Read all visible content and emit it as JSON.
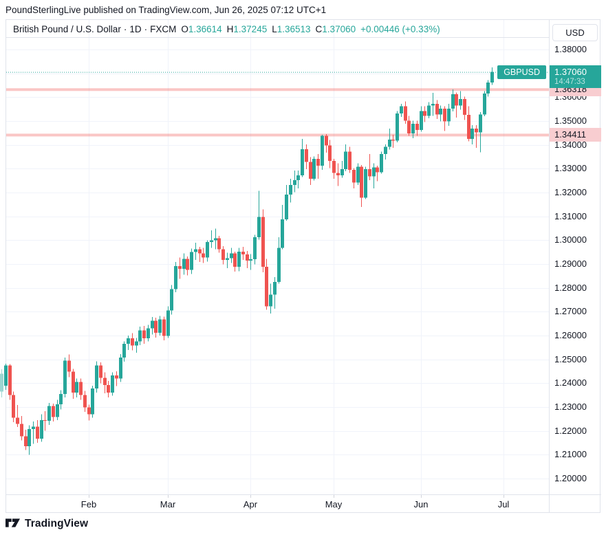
{
  "page": {
    "title": "PoundSterlingLive published on TradingView.com, Jun 26, 2025 07:12 UTC+1",
    "brand": "TradingView"
  },
  "toolbar": {
    "symbol_title": "British Pound / U.S. Dollar",
    "separator": "·",
    "interval": "1D",
    "exchange": "FXCM",
    "ohlc": [
      {
        "k": "O",
        "v": "1.36614"
      },
      {
        "k": "H",
        "v": "1.37245"
      },
      {
        "k": "L",
        "v": "1.36513"
      },
      {
        "k": "C",
        "v": "1.37060"
      }
    ],
    "change": "+0.00446 (+0.33%)"
  },
  "price_axis": {
    "currency_button": "USD",
    "ticks": [
      "1.38000",
      "1.37000",
      "1.36000",
      "1.35000",
      "1.34000",
      "1.33000",
      "1.32000",
      "1.31000",
      "1.30000",
      "1.29000",
      "1.28000",
      "1.27000",
      "1.26000",
      "1.25000",
      "1.24000",
      "1.23000",
      "1.22000",
      "1.21000",
      "1.20000"
    ],
    "levels": [
      {
        "price": "1.36318"
      },
      {
        "price": "1.34411"
      }
    ],
    "last_price": {
      "symbol": "GBPUSD",
      "price": "1.37060",
      "countdown": "14:47:33"
    }
  },
  "time_axis": {
    "labels": [
      {
        "text": "Feb",
        "bar_index": 22
      },
      {
        "text": "Mar",
        "bar_index": 42
      },
      {
        "text": "Apr",
        "bar_index": 63
      },
      {
        "text": "May",
        "bar_index": 84
      },
      {
        "text": "Jun",
        "bar_index": 106
      },
      {
        "text": "Jul",
        "bar_index": 127
      }
    ]
  },
  "colors": {
    "up": "#26a69a",
    "down": "#ef5350",
    "grid": "#f0f3fa",
    "border": "#e0e3eb",
    "text": "#131722",
    "level_band": "rgba(239,83,80,0.33)",
    "level_label_bg": "#f8cdd0"
  },
  "chart_data": {
    "type": "candlestick",
    "title": "British Pound / U.S. Dollar",
    "symbol": "GBPUSD",
    "interval": "1D",
    "exchange": "FXCM",
    "y_axis": {
      "min": 1.2,
      "max": 1.38,
      "tick_step": 0.01,
      "grid": true
    },
    "levels": [
      1.36318,
      1.34411
    ],
    "last_price": 1.3706,
    "candle_fields": [
      "date",
      "open",
      "high",
      "low",
      "close"
    ],
    "candles": [
      [
        "2025-01-02",
        1.2365,
        1.2458,
        1.234,
        1.244
      ],
      [
        "2025-01-03",
        1.239,
        1.2482,
        1.2372,
        1.2474
      ],
      [
        "2025-01-06",
        1.2474,
        1.248,
        1.233,
        1.235
      ],
      [
        "2025-01-07",
        1.235,
        1.2365,
        1.2236,
        1.2256
      ],
      [
        "2025-01-08",
        1.2256,
        1.2308,
        1.2216,
        1.223
      ],
      [
        "2025-01-09",
        1.223,
        1.2262,
        1.216,
        1.2178
      ],
      [
        "2025-01-10",
        1.2178,
        1.2205,
        1.212,
        1.2135
      ],
      [
        "2025-01-13",
        1.2135,
        1.2223,
        1.21,
        1.2208
      ],
      [
        "2025-01-14",
        1.2208,
        1.224,
        1.2145,
        1.2218
      ],
      [
        "2025-01-15",
        1.2218,
        1.2245,
        1.215,
        1.2168
      ],
      [
        "2025-01-16",
        1.2168,
        1.227,
        1.2155,
        1.2245
      ],
      [
        "2025-01-17",
        1.2245,
        1.2282,
        1.22,
        1.2242
      ],
      [
        "2025-01-20",
        1.2242,
        1.2318,
        1.2225,
        1.2305
      ],
      [
        "2025-01-21",
        1.2305,
        1.2315,
        1.224,
        1.2258
      ],
      [
        "2025-01-22",
        1.2258,
        1.233,
        1.2245,
        1.2312
      ],
      [
        "2025-01-23",
        1.2312,
        1.237,
        1.229,
        1.2355
      ],
      [
        "2025-01-24",
        1.2355,
        1.2508,
        1.234,
        1.2495
      ],
      [
        "2025-01-27",
        1.2495,
        1.252,
        1.2425,
        1.2448
      ],
      [
        "2025-01-28",
        1.2448,
        1.246,
        1.2335,
        1.236
      ],
      [
        "2025-01-29",
        1.236,
        1.242,
        1.234,
        1.2405
      ],
      [
        "2025-01-30",
        1.2405,
        1.242,
        1.233,
        1.235
      ],
      [
        "2025-01-31",
        1.235,
        1.2368,
        1.228,
        1.2298
      ],
      [
        "2025-02-03",
        1.2298,
        1.231,
        1.2244,
        1.227
      ],
      [
        "2025-02-04",
        1.227,
        1.239,
        1.2255,
        1.2378
      ],
      [
        "2025-02-05",
        1.2378,
        1.2492,
        1.236,
        1.2475
      ],
      [
        "2025-02-06",
        1.2475,
        1.2488,
        1.24,
        1.2422
      ],
      [
        "2025-02-07",
        1.2422,
        1.2445,
        1.2358,
        1.2392
      ],
      [
        "2025-02-10",
        1.2392,
        1.241,
        1.234,
        1.236
      ],
      [
        "2025-02-11",
        1.236,
        1.2445,
        1.2348,
        1.2432
      ],
      [
        "2025-02-12",
        1.2432,
        1.245,
        1.2388,
        1.242
      ],
      [
        "2025-02-13",
        1.242,
        1.2522,
        1.2405,
        1.2508
      ],
      [
        "2025-02-14",
        1.2508,
        1.2576,
        1.249,
        1.2565
      ],
      [
        "2025-02-17",
        1.2565,
        1.26,
        1.254,
        1.2588
      ],
      [
        "2025-02-18",
        1.2588,
        1.261,
        1.2538,
        1.2558
      ],
      [
        "2025-02-19",
        1.2558,
        1.259,
        1.2528,
        1.2575
      ],
      [
        "2025-02-20",
        1.2575,
        1.2638,
        1.256,
        1.2622
      ],
      [
        "2025-02-21",
        1.2622,
        1.264,
        1.2565,
        1.2588
      ],
      [
        "2025-02-24",
        1.2588,
        1.2645,
        1.2575,
        1.263
      ],
      [
        "2025-02-25",
        1.263,
        1.2678,
        1.2605,
        1.2662
      ],
      [
        "2025-02-26",
        1.2662,
        1.2675,
        1.2592,
        1.2612
      ],
      [
        "2025-02-27",
        1.2612,
        1.2682,
        1.26,
        1.2668
      ],
      [
        "2025-02-28",
        1.2668,
        1.268,
        1.258,
        1.2598
      ],
      [
        "2025-03-03",
        1.2598,
        1.2722,
        1.259,
        1.2705
      ],
      [
        "2025-03-04",
        1.2705,
        1.2812,
        1.2688,
        1.2795
      ],
      [
        "2025-03-05",
        1.2795,
        1.2908,
        1.2782,
        1.2892
      ],
      [
        "2025-03-06",
        1.2892,
        1.2928,
        1.2838,
        1.288
      ],
      [
        "2025-03-07",
        1.288,
        1.2945,
        1.2855,
        1.2922
      ],
      [
        "2025-03-10",
        1.2922,
        1.2932,
        1.2852,
        1.2875
      ],
      [
        "2025-03-11",
        1.2875,
        1.2965,
        1.2858,
        1.295
      ],
      [
        "2025-03-12",
        1.295,
        1.299,
        1.2918,
        1.2962
      ],
      [
        "2025-03-13",
        1.2962,
        1.2972,
        1.2908,
        1.2945
      ],
      [
        "2025-03-14",
        1.2945,
        1.2968,
        1.2905,
        1.2928
      ],
      [
        "2025-03-17",
        1.2928,
        1.3,
        1.291,
        1.2992
      ],
      [
        "2025-03-18",
        1.2992,
        1.3042,
        1.2968,
        1.3
      ],
      [
        "2025-03-19",
        1.3,
        1.3048,
        1.2962,
        1.3008
      ],
      [
        "2025-03-20",
        1.3008,
        1.3018,
        1.2948,
        1.2962
      ],
      [
        "2025-03-21",
        1.2962,
        1.2975,
        1.2898,
        1.2918
      ],
      [
        "2025-03-24",
        1.2918,
        1.2948,
        1.2883,
        1.2925
      ],
      [
        "2025-03-25",
        1.2925,
        1.2968,
        1.2905,
        1.2945
      ],
      [
        "2025-03-26",
        1.2945,
        1.2952,
        1.2868,
        1.2888
      ],
      [
        "2025-03-27",
        1.2888,
        1.2968,
        1.287,
        1.2952
      ],
      [
        "2025-03-28",
        1.2952,
        1.2972,
        1.2918,
        1.294
      ],
      [
        "2025-03-31",
        1.294,
        1.2955,
        1.2882,
        1.2915
      ],
      [
        "2025-04-01",
        1.2915,
        1.2942,
        1.2875,
        1.292
      ],
      [
        "2025-04-02",
        1.292,
        1.3022,
        1.2898,
        1.3012
      ],
      [
        "2025-04-03",
        1.3012,
        1.3207,
        1.3002,
        1.3098
      ],
      [
        "2025-04-04",
        1.3098,
        1.313,
        1.2865,
        1.2888
      ],
      [
        "2025-04-07",
        1.2888,
        1.2922,
        1.2708,
        1.2722
      ],
      [
        "2025-04-08",
        1.2722,
        1.2818,
        1.2692,
        1.2772
      ],
      [
        "2025-04-09",
        1.2772,
        1.2845,
        1.2712,
        1.2825
      ],
      [
        "2025-04-10",
        1.2825,
        1.3012,
        1.2818,
        1.2968
      ],
      [
        "2025-04-11",
        1.2968,
        1.3148,
        1.2962,
        1.3088
      ],
      [
        "2025-04-14",
        1.3088,
        1.3232,
        1.3082,
        1.3192
      ],
      [
        "2025-04-15",
        1.3192,
        1.3258,
        1.3158,
        1.3232
      ],
      [
        "2025-04-16",
        1.3232,
        1.3292,
        1.3202,
        1.3252
      ],
      [
        "2025-04-17",
        1.3252,
        1.3292,
        1.3218,
        1.3272
      ],
      [
        "2025-04-21",
        1.3272,
        1.3425,
        1.3265,
        1.3382
      ],
      [
        "2025-04-22",
        1.3382,
        1.3402,
        1.3298,
        1.3328
      ],
      [
        "2025-04-23",
        1.3328,
        1.3348,
        1.3232,
        1.3258
      ],
      [
        "2025-04-24",
        1.3258,
        1.3352,
        1.325,
        1.3342
      ],
      [
        "2025-04-25",
        1.3342,
        1.3362,
        1.3258,
        1.3312
      ],
      [
        "2025-04-28",
        1.3312,
        1.3443,
        1.3295,
        1.3438
      ],
      [
        "2025-04-29",
        1.3438,
        1.3445,
        1.3368,
        1.3398
      ],
      [
        "2025-04-30",
        1.3398,
        1.342,
        1.3302,
        1.3332
      ],
      [
        "2025-05-01",
        1.3332,
        1.3342,
        1.3258,
        1.3282
      ],
      [
        "2025-05-02",
        1.3282,
        1.3322,
        1.3228,
        1.3272
      ],
      [
        "2025-05-05",
        1.3272,
        1.3332,
        1.3262,
        1.3298
      ],
      [
        "2025-05-06",
        1.3298,
        1.3402,
        1.329,
        1.3372
      ],
      [
        "2025-05-07",
        1.3372,
        1.3392,
        1.3282,
        1.3295
      ],
      [
        "2025-05-08",
        1.3295,
        1.3302,
        1.3218,
        1.3242
      ],
      [
        "2025-05-09",
        1.3242,
        1.3322,
        1.3232,
        1.3308
      ],
      [
        "2025-05-12",
        1.3308,
        1.3315,
        1.314,
        1.3178
      ],
      [
        "2025-05-13",
        1.3178,
        1.3308,
        1.3172,
        1.3298
      ],
      [
        "2025-05-14",
        1.3298,
        1.3362,
        1.3252,
        1.3268
      ],
      [
        "2025-05-15",
        1.3268,
        1.3322,
        1.3218,
        1.3305
      ],
      [
        "2025-05-16",
        1.3305,
        1.3312,
        1.3248,
        1.3285
      ],
      [
        "2025-05-19",
        1.3285,
        1.3372,
        1.328,
        1.3362
      ],
      [
        "2025-05-20",
        1.3362,
        1.3402,
        1.3338,
        1.3392
      ],
      [
        "2025-05-21",
        1.3392,
        1.3468,
        1.338,
        1.3422
      ],
      [
        "2025-05-22",
        1.3422,
        1.3442,
        1.3388,
        1.3418
      ],
      [
        "2025-05-23",
        1.3418,
        1.3542,
        1.341,
        1.3532
      ],
      [
        "2025-05-26",
        1.3532,
        1.3572,
        1.3518,
        1.3562
      ],
      [
        "2025-05-27",
        1.3562,
        1.3582,
        1.3488,
        1.3502
      ],
      [
        "2025-05-28",
        1.3502,
        1.3522,
        1.3438,
        1.3448
      ],
      [
        "2025-05-29",
        1.3448,
        1.3502,
        1.3428,
        1.3488
      ],
      [
        "2025-05-30",
        1.3488,
        1.3502,
        1.3438,
        1.3462
      ],
      [
        "2025-06-02",
        1.3462,
        1.3562,
        1.3455,
        1.3542
      ],
      [
        "2025-06-03",
        1.3542,
        1.3562,
        1.3495,
        1.3522
      ],
      [
        "2025-06-04",
        1.3522,
        1.358,
        1.3512,
        1.3565
      ],
      [
        "2025-06-05",
        1.3565,
        1.3618,
        1.3522,
        1.3572
      ],
      [
        "2025-06-06",
        1.3572,
        1.3588,
        1.3508,
        1.3528
      ],
      [
        "2025-06-09",
        1.3528,
        1.3565,
        1.3498,
        1.3552
      ],
      [
        "2025-06-10",
        1.3552,
        1.3562,
        1.3458,
        1.3498
      ],
      [
        "2025-06-11",
        1.3498,
        1.3572,
        1.348,
        1.3552
      ],
      [
        "2025-06-12",
        1.3552,
        1.3632,
        1.354,
        1.3612
      ],
      [
        "2025-06-13",
        1.3612,
        1.362,
        1.3515,
        1.3565
      ],
      [
        "2025-06-16",
        1.3565,
        1.3625,
        1.3548,
        1.3592
      ],
      [
        "2025-06-17",
        1.3592,
        1.3602,
        1.3505,
        1.3526
      ],
      [
        "2025-06-18",
        1.3526,
        1.3562,
        1.3415,
        1.3425
      ],
      [
        "2025-06-19",
        1.3425,
        1.3482,
        1.3402,
        1.3468
      ],
      [
        "2025-06-20",
        1.3468,
        1.3482,
        1.3388,
        1.3452
      ],
      [
        "2025-06-23",
        1.3452,
        1.3538,
        1.3369,
        1.3528
      ],
      [
        "2025-06-24",
        1.3528,
        1.3625,
        1.352,
        1.3615
      ],
      [
        "2025-06-25",
        1.3615,
        1.3672,
        1.3602,
        1.3662
      ],
      [
        "2025-06-26",
        1.3661,
        1.3725,
        1.3651,
        1.3706
      ]
    ]
  }
}
